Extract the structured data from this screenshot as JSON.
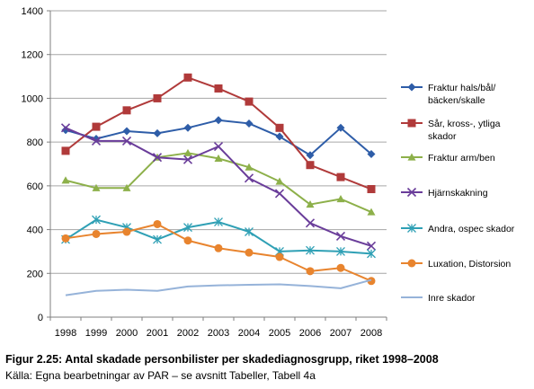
{
  "chart_data": {
    "type": "line",
    "categories": [
      "1998",
      "1999",
      "2000",
      "2001",
      "2002",
      "2003",
      "2004",
      "2005",
      "2006",
      "2007",
      "2008"
    ],
    "ylim": [
      0,
      1400
    ],
    "yticks": [
      0,
      200,
      400,
      600,
      800,
      1000,
      1200,
      1400
    ],
    "grid": "horizontal",
    "legend": "right",
    "series": [
      {
        "name": "Fraktur hals/bål/ bäcken/skalle",
        "legend_lines": [
          "Fraktur hals/bål/",
          "bäcken/skalle"
        ],
        "color": "#2E5DA8",
        "marker": "diamond",
        "values": [
          855,
          815,
          850,
          840,
          865,
          900,
          885,
          825,
          740,
          865,
          745
        ]
      },
      {
        "name": "Sår, kross-, ytliga skador",
        "legend_lines": [
          "Sår, kross-, ytliga",
          "skador"
        ],
        "color": "#B03A3A",
        "marker": "square",
        "values": [
          760,
          870,
          945,
          1000,
          1095,
          1045,
          985,
          865,
          695,
          640,
          585
        ]
      },
      {
        "name": "Fraktur arm/ben",
        "legend_lines": [
          "Fraktur arm/ben"
        ],
        "color": "#8DB04A",
        "marker": "triangle",
        "values": [
          625,
          590,
          590,
          730,
          750,
          725,
          685,
          620,
          515,
          540,
          480
        ]
      },
      {
        "name": "Hjärnskakning",
        "legend_lines": [
          "Hjärnskakning"
        ],
        "color": "#6A3D9A",
        "marker": "x",
        "values": [
          865,
          805,
          805,
          730,
          720,
          780,
          635,
          565,
          430,
          370,
          325
        ]
      },
      {
        "name": "Andra, ospec skador",
        "legend_lines": [
          "Andra, ospec skador"
        ],
        "color": "#2FA0B5",
        "marker": "star",
        "values": [
          355,
          445,
          410,
          355,
          410,
          435,
          390,
          300,
          305,
          300,
          290
        ]
      },
      {
        "name": "Luxation, Distorsion",
        "legend_lines": [
          "Luxation, Distorsion"
        ],
        "color": "#E8842E",
        "marker": "circle",
        "values": [
          360,
          380,
          390,
          425,
          350,
          315,
          295,
          275,
          210,
          225,
          165
        ]
      },
      {
        "name": "Inre skador",
        "legend_lines": [
          "Inre skador"
        ],
        "color": "#96B3D9",
        "marker": "none",
        "values": [
          100,
          120,
          125,
          120,
          140,
          145,
          148,
          150,
          142,
          132,
          170
        ]
      }
    ]
  },
  "caption": {
    "title": "Figur 2.25: Antal skadade personbilister per skadediagnosgrupp, riket 1998–2008",
    "source": "Källa: Egna bearbetningar av PAR – se avsnitt Tabeller, Tabell 4a"
  }
}
